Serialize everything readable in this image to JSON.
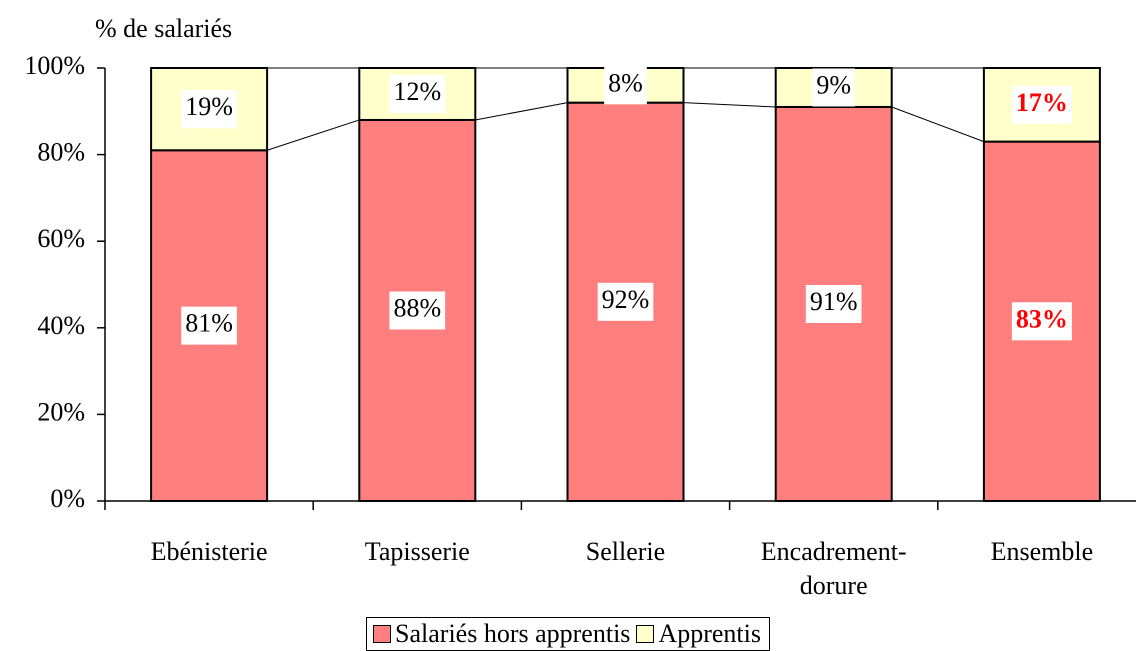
{
  "chart_data": {
    "type": "stacked_bar",
    "y_axis_label": "% de salariés",
    "categories": [
      "Ebénisterie",
      "Tapisserie",
      "Sellerie",
      "Encadrement-dorure",
      "Ensemble"
    ],
    "series": [
      {
        "name": "Salariés hors apprentis",
        "color": "#ff7f7f",
        "values": [
          81,
          88,
          92,
          91,
          83
        ],
        "value_labels": [
          "81%",
          "88%",
          "92%",
          "91%",
          "83%"
        ]
      },
      {
        "name": "Apprentis",
        "color": "#ffffcc",
        "values": [
          19,
          12,
          8,
          9,
          17
        ],
        "value_labels": [
          "19%",
          "12%",
          "8%",
          "9%",
          "17%"
        ]
      }
    ],
    "value_label_colors": [
      "#000000",
      "#000000",
      "#000000",
      "#000000",
      "#ff0000"
    ],
    "ylim": [
      0,
      100
    ],
    "yticks": [
      {
        "value": 0,
        "label": "0%"
      },
      {
        "value": 20,
        "label": "20%"
      },
      {
        "value": 40,
        "label": "40%"
      },
      {
        "value": 60,
        "label": "60%"
      },
      {
        "value": 80,
        "label": "80%"
      },
      {
        "value": 100,
        "label": "100%"
      }
    ],
    "series_lines": true,
    "legend": "bottom"
  }
}
